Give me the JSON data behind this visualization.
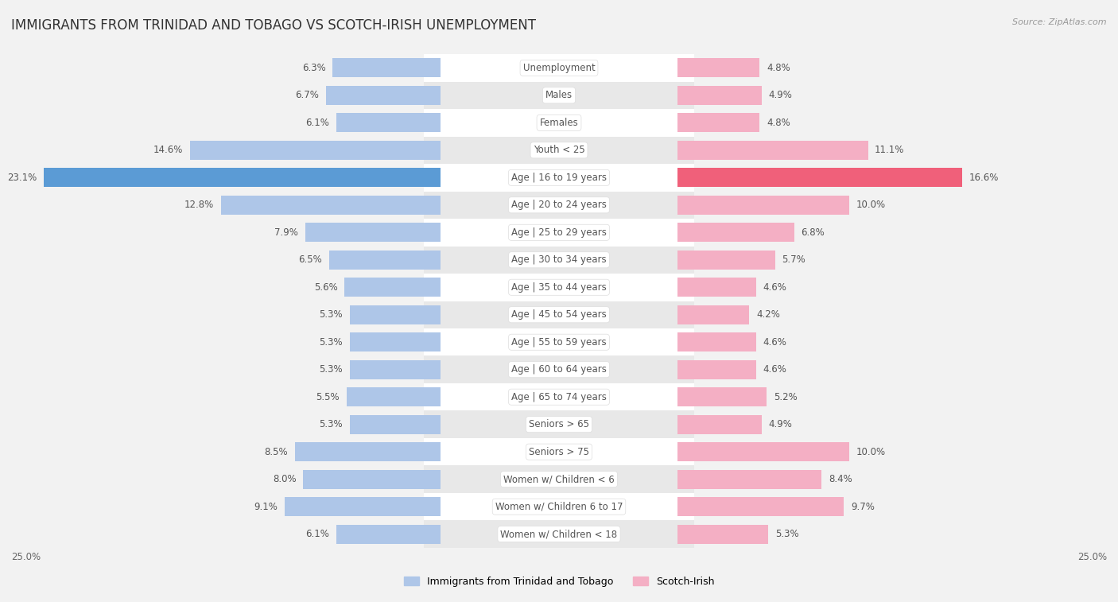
{
  "title": "IMMIGRANTS FROM TRINIDAD AND TOBAGO VS SCOTCH-IRISH UNEMPLOYMENT",
  "source": "Source: ZipAtlas.com",
  "categories": [
    "Unemployment",
    "Males",
    "Females",
    "Youth < 25",
    "Age | 16 to 19 years",
    "Age | 20 to 24 years",
    "Age | 25 to 29 years",
    "Age | 30 to 34 years",
    "Age | 35 to 44 years",
    "Age | 45 to 54 years",
    "Age | 55 to 59 years",
    "Age | 60 to 64 years",
    "Age | 65 to 74 years",
    "Seniors > 65",
    "Seniors > 75",
    "Women w/ Children < 6",
    "Women w/ Children 6 to 17",
    "Women w/ Children < 18"
  ],
  "left_values": [
    6.3,
    6.7,
    6.1,
    14.6,
    23.1,
    12.8,
    7.9,
    6.5,
    5.6,
    5.3,
    5.3,
    5.3,
    5.5,
    5.3,
    8.5,
    8.0,
    9.1,
    6.1
  ],
  "right_values": [
    4.8,
    4.9,
    4.8,
    11.1,
    16.6,
    10.0,
    6.8,
    5.7,
    4.6,
    4.2,
    4.6,
    4.6,
    5.2,
    4.9,
    10.0,
    8.4,
    9.7,
    5.3
  ],
  "left_color": "#aec6e8",
  "right_color": "#f4afc4",
  "highlight_left_color": "#5b9bd5",
  "highlight_right_color": "#f0607a",
  "highlight_row": 4,
  "axis_limit": 25.0,
  "background_color": "#f2f2f2",
  "row_color_even": "#ffffff",
  "row_color_odd": "#e8e8e8",
  "title_fontsize": 12,
  "label_fontsize": 8.5,
  "value_fontsize": 8.5,
  "legend_label_left": "Immigrants from Trinidad and Tobago",
  "legend_label_right": "Scotch-Irish"
}
